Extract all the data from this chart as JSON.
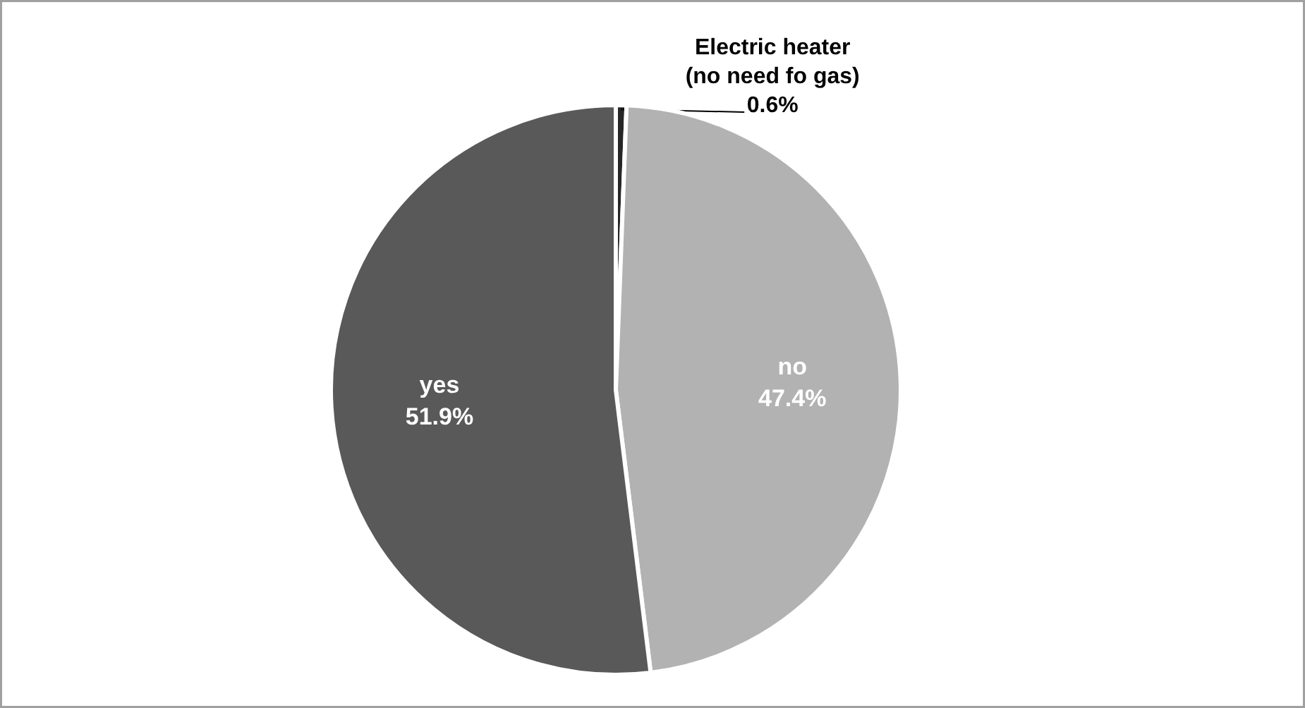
{
  "chart_data": {
    "type": "pie",
    "categories": [
      "Electric heater\n(no need fo gas)",
      "no",
      "yes"
    ],
    "values": [
      0.6,
      47.4,
      51.9
    ],
    "colors": [
      "#262626",
      "#b2b2b2",
      "#595959"
    ],
    "value_labels": [
      "0.6%",
      "47.4%",
      "51.9%"
    ]
  }
}
